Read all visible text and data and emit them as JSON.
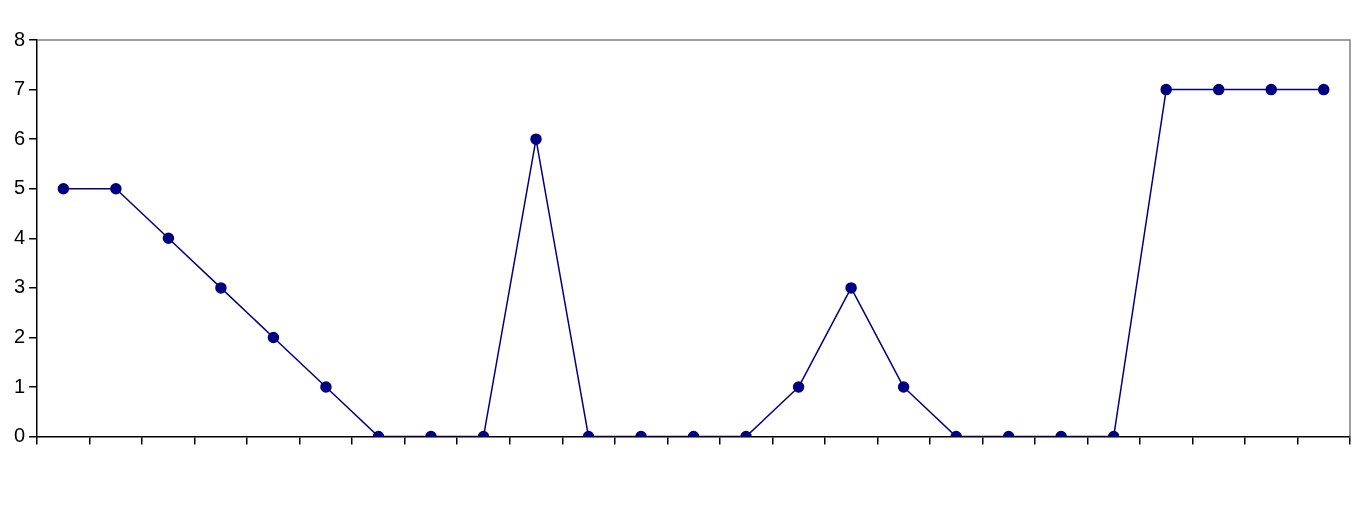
{
  "chart_data": {
    "type": "line",
    "categories": [
      null,
      null,
      null,
      null,
      null,
      null,
      null,
      null,
      null,
      null,
      null,
      null,
      null,
      null,
      null,
      null,
      null,
      null,
      null,
      null,
      null,
      null,
      null,
      null,
      null
    ],
    "series": [
      {
        "color": "#000080",
        "values": [
          5,
          5,
          4,
          3,
          2,
          1,
          0,
          0,
          0,
          6,
          0,
          0,
          0,
          0,
          1,
          3,
          1,
          0,
          0,
          0,
          0,
          7,
          7,
          7,
          7
        ]
      }
    ],
    "ylim": [
      0,
      8
    ],
    "yticks": [
      0,
      1,
      2,
      3,
      4,
      5,
      6,
      7,
      8
    ],
    "grid": false,
    "legend": false,
    "marker": "circle",
    "line_style": "solid"
  }
}
